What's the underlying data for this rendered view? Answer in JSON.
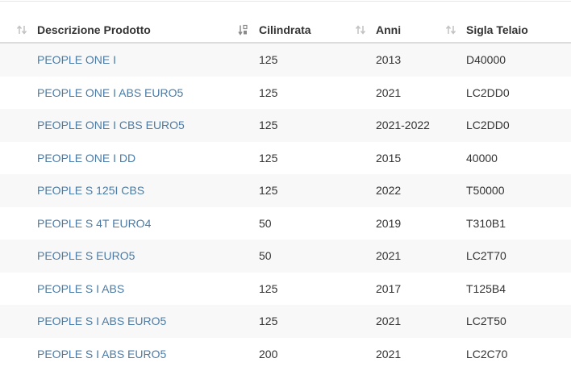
{
  "table": {
    "columns": [
      {
        "label": "Descrizione Prodotto",
        "sort_icon": "sort-both-icon"
      },
      {
        "label": "Cilindrata",
        "sort_icon": "sort-numeric-ascending-icon"
      },
      {
        "label": "Anni",
        "sort_icon": "sort-both-icon"
      },
      {
        "label": "Sigla Telaio",
        "sort_icon": "sort-both-icon"
      }
    ],
    "rows": [
      {
        "descrizione": "PEOPLE ONE I",
        "cilindrata": "125",
        "anni": "2013",
        "sigla": "D40000"
      },
      {
        "descrizione": "PEOPLE ONE I ABS EURO5",
        "cilindrata": "125",
        "anni": "2021",
        "sigla": "LC2DD0"
      },
      {
        "descrizione": "PEOPLE ONE I CBS EURO5",
        "cilindrata": "125",
        "anni": "2021-2022",
        "sigla": "LC2DD0"
      },
      {
        "descrizione": "PEOPLE ONE I DD",
        "cilindrata": "125",
        "anni": "2015",
        "sigla": "40000"
      },
      {
        "descrizione": "PEOPLE S 125I CBS",
        "cilindrata": "125",
        "anni": "2022",
        "sigla": "T50000"
      },
      {
        "descrizione": "PEOPLE S 4T EURO4",
        "cilindrata": "50",
        "anni": "2019",
        "sigla": "T310B1"
      },
      {
        "descrizione": "PEOPLE S EURO5",
        "cilindrata": "50",
        "anni": "2021",
        "sigla": "LC2T70"
      },
      {
        "descrizione": "PEOPLE S I ABS",
        "cilindrata": "125",
        "anni": "2017",
        "sigla": "T125B4"
      },
      {
        "descrizione": "PEOPLE S I ABS EURO5",
        "cilindrata": "125",
        "anni": "2021",
        "sigla": "LC2T50"
      },
      {
        "descrizione": "PEOPLE S I ABS EURO5",
        "cilindrata": "200",
        "anni": "2021",
        "sigla": "LC2C70"
      }
    ],
    "colors": {
      "link": "#4a7ba6",
      "text": "#333333",
      "row_stripe": "#f8f8f8",
      "icon": "#c2c2c2",
      "icon_active": "#8a8a8a"
    }
  }
}
